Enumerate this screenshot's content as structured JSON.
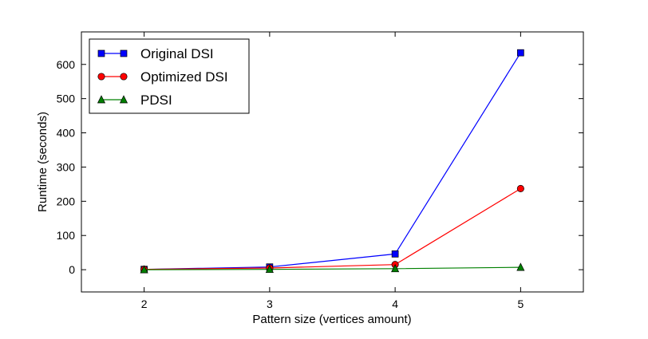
{
  "chart_data": {
    "type": "line",
    "xlabel": "Pattern size (vertices amount)",
    "ylabel": "Runtime (seconds)",
    "xlim": [
      1.5,
      5.5
    ],
    "ylim": [
      -65,
      695
    ],
    "x_ticks": [
      2,
      3,
      4,
      5
    ],
    "y_ticks": [
      0,
      100,
      200,
      300,
      400,
      500,
      600
    ],
    "x_tick_labels": [
      "2",
      "3",
      "4",
      "5"
    ],
    "y_tick_labels": [
      "0",
      "100",
      "200",
      "300",
      "400",
      "500",
      "600"
    ],
    "grid": false,
    "legend_position": "top-left",
    "x": [
      2,
      3,
      4,
      5
    ],
    "series": [
      {
        "name": "Original DSI",
        "values": [
          1,
          8,
          46,
          634
        ],
        "color": "#0000ff",
        "marker": "square"
      },
      {
        "name": "Optimized DSI",
        "values": [
          1,
          5,
          15,
          237
        ],
        "color": "#ff0000",
        "marker": "circle"
      },
      {
        "name": "PDSI",
        "values": [
          0,
          1,
          3,
          7
        ],
        "color": "#008000",
        "marker": "triangle"
      }
    ]
  }
}
